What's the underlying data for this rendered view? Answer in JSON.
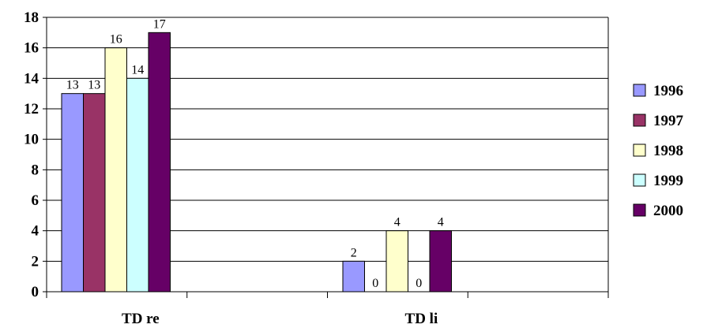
{
  "chart_data": {
    "type": "bar",
    "title": "",
    "xlabel": "",
    "ylabel": "",
    "categories": [
      "TD re",
      "TD li"
    ],
    "ylim": [
      0,
      18
    ],
    "yticks": [
      0,
      2,
      4,
      6,
      8,
      10,
      12,
      14,
      16,
      18
    ],
    "grid": true,
    "legend_position": "right",
    "series": [
      {
        "name": "1996",
        "values": [
          13,
          2
        ],
        "color": "#9999ff"
      },
      {
        "name": "1997",
        "values": [
          13,
          0
        ],
        "color": "#993366"
      },
      {
        "name": "1998",
        "values": [
          16,
          4
        ],
        "color": "#ffffcc"
      },
      {
        "name": "1999",
        "values": [
          14,
          0
        ],
        "color": "#ccffff"
      },
      {
        "name": "2000",
        "values": [
          17,
          4
        ],
        "color": "#660066"
      }
    ]
  }
}
